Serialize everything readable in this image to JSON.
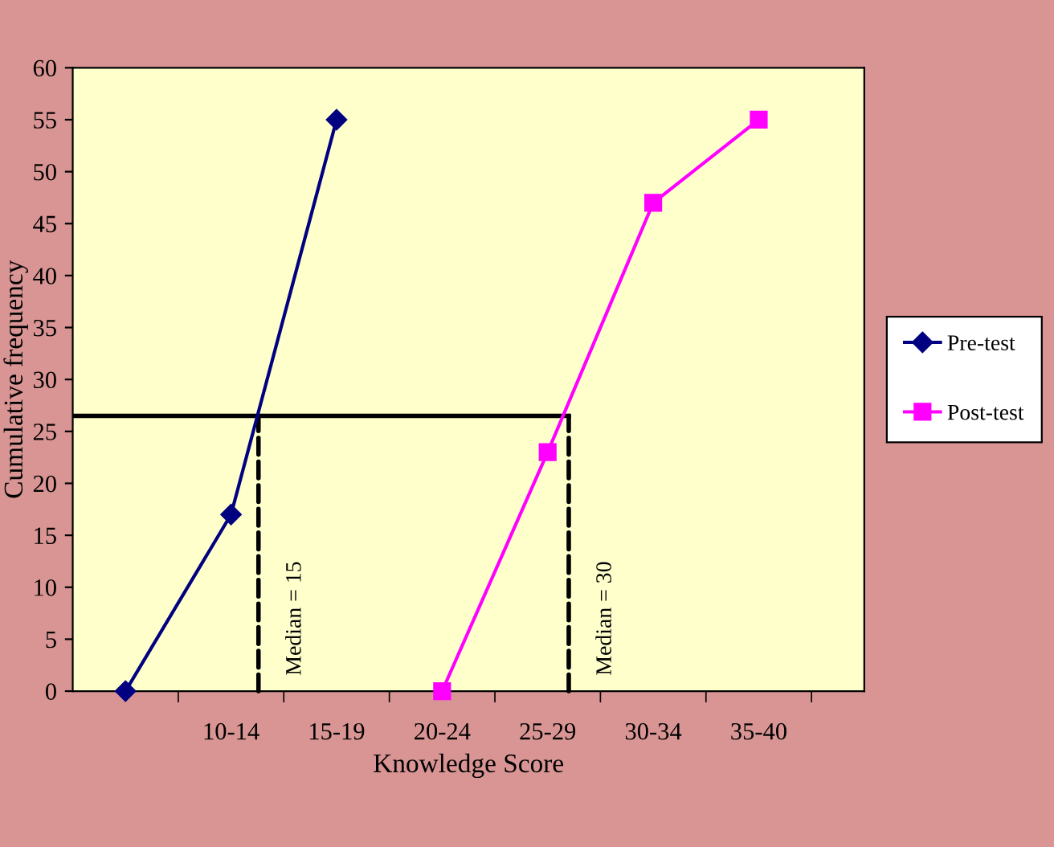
{
  "chart_data": {
    "type": "line",
    "xlabel": "Knowledge Score",
    "ylabel": "Cumulative frequency",
    "categories": [
      null,
      "10-14",
      "15-19",
      "20-24",
      "25-29",
      "30-34",
      "35-40",
      null
    ],
    "series": [
      {
        "name": "Pre-test",
        "color": "#000080",
        "marker": "diamond",
        "values": [
          0,
          17,
          55,
          null,
          null,
          null,
          null,
          null
        ]
      },
      {
        "name": "Post-test",
        "color": "#ff00ff",
        "marker": "square",
        "values": [
          null,
          null,
          null,
          0,
          23,
          47,
          55,
          null
        ]
      }
    ],
    "ylim": [
      0,
      60
    ],
    "yticks": [
      0,
      5,
      10,
      15,
      20,
      25,
      30,
      35,
      40,
      45,
      50,
      55,
      60
    ],
    "ref_lines": [
      {
        "axis": "y",
        "value": 26.5,
        "color": "#000000",
        "line_style": "solid"
      }
    ],
    "annotations": [
      "Median = 15",
      "Median = 30"
    ],
    "legend": "right",
    "grid": false,
    "line_style": "solid"
  }
}
